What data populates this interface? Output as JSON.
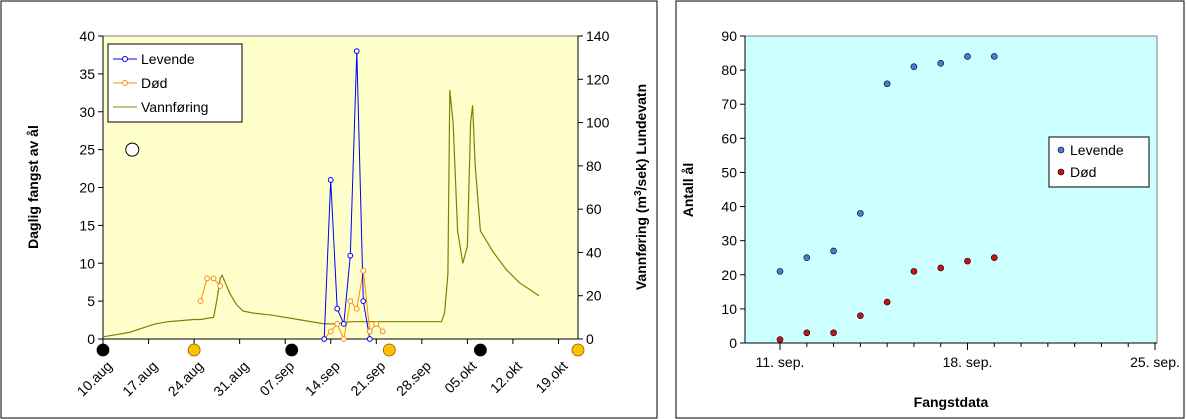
{
  "chart_data": [
    {
      "type": "line",
      "left_axis": {
        "label": "Daglig fangst av ål",
        "ylim": [
          0,
          40
        ],
        "ticks": [
          "0",
          "5",
          "10",
          "15",
          "20",
          "25",
          "30",
          "35",
          "40"
        ]
      },
      "right_axis": {
        "label_main": "Vannføring (m",
        "label_sup": "3",
        "label_rest": "/sek) Lundevatn",
        "ylim": [
          0,
          140
        ],
        "ticks": [
          "0",
          "20",
          "40",
          "60",
          "80",
          "100",
          "120",
          "140"
        ]
      },
      "x_ticks": [
        "10.aug",
        "17.aug",
        "24.aug",
        "31.aug",
        "07.sep",
        "14.sep",
        "21.sep",
        "28.sep",
        "05.okt",
        "12.okt",
        "19.okt"
      ],
      "legend": [
        "Levende",
        "Død",
        "Vannføring"
      ],
      "series": [
        {
          "name": "Levende",
          "color": "#0000ff",
          "points": [
            [
              34,
              0
            ],
            [
              35,
              21
            ],
            [
              36,
              4
            ],
            [
              37,
              2
            ],
            [
              38,
              11
            ],
            [
              39,
              38
            ],
            [
              40,
              5
            ],
            [
              41,
              0
            ]
          ]
        },
        {
          "name": "Død",
          "color": "#ff8c00",
          "points": [
            [
              15,
              5
            ],
            [
              16,
              8
            ],
            [
              17,
              8
            ],
            [
              18,
              7
            ],
            [
              34,
              0
            ],
            [
              35,
              1
            ],
            [
              36,
              2
            ],
            [
              37,
              0
            ],
            [
              38,
              5
            ],
            [
              39,
              4
            ],
            [
              40,
              9
            ],
            [
              41,
              1
            ],
            [
              42,
              2
            ],
            [
              43,
              1
            ]
          ]
        },
        {
          "name": "Vannføring",
          "color": "#808000",
          "points": [
            [
              0,
              1
            ],
            [
              2,
              2
            ],
            [
              4,
              3
            ],
            [
              6,
              5
            ],
            [
              8,
              7
            ],
            [
              10,
              8
            ],
            [
              12,
              8.5
            ],
            [
              14,
              9
            ],
            [
              15,
              9
            ],
            [
              16,
              9.5
            ],
            [
              17,
              10
            ],
            [
              17.5,
              18
            ],
            [
              18,
              28
            ],
            [
              18.3,
              29.5
            ],
            [
              18.8,
              26
            ],
            [
              19.5,
              21
            ],
            [
              20.5,
              16
            ],
            [
              21.5,
              13
            ],
            [
              23,
              12
            ],
            [
              26,
              11
            ],
            [
              30,
              9
            ],
            [
              34,
              7
            ],
            [
              36,
              7
            ],
            [
              38,
              8
            ],
            [
              40,
              8
            ],
            [
              45,
              8
            ],
            [
              50,
              8
            ],
            [
              52,
              8
            ],
            [
              52.5,
              12
            ],
            [
              53,
              30
            ],
            [
              53.3,
              115
            ],
            [
              53.8,
              100
            ],
            [
              54.5,
              50
            ],
            [
              55.3,
              35
            ],
            [
              56,
              43
            ],
            [
              56.5,
              100
            ],
            [
              56.8,
              108
            ],
            [
              57.2,
              80
            ],
            [
              58,
              50
            ],
            [
              60,
              40
            ],
            [
              62,
              32
            ],
            [
              64,
              26
            ],
            [
              66,
              22
            ],
            [
              67,
              20
            ]
          ]
        }
      ],
      "markers": [
        {
          "day": 0,
          "color": "black"
        },
        {
          "day": 14,
          "color": "gold"
        },
        {
          "day": 29,
          "color": "black"
        },
        {
          "day": 44,
          "color": "gold"
        },
        {
          "day": 58,
          "color": "black"
        },
        {
          "day": 73,
          "color": "gold"
        }
      ],
      "annotation_circle": {
        "day": 4.5,
        "value": 25
      }
    },
    {
      "type": "scatter",
      "xlabel": "Fangstdata",
      "ylabel": "Antall  ål",
      "ylim": [
        0,
        90
      ],
      "y_ticks": [
        "0",
        "10",
        "20",
        "30",
        "40",
        "50",
        "60",
        "70",
        "80",
        "90"
      ],
      "x_ticks": [
        {
          "label": "11. sep.",
          "day": 0
        },
        {
          "label": "18. sep.",
          "day": 7
        },
        {
          "label": "25. sep.",
          "day": 14
        }
      ],
      "xlim": [
        0,
        14
      ],
      "legend": [
        "Levende",
        "Død"
      ],
      "series": [
        {
          "name": "Levende",
          "color": "#4b7bd8",
          "points": [
            [
              0,
              21
            ],
            [
              1,
              25
            ],
            [
              2,
              27
            ],
            [
              3,
              38
            ],
            [
              4,
              76
            ],
            [
              5,
              81
            ],
            [
              6,
              82
            ],
            [
              7,
              84
            ],
            [
              8,
              84
            ]
          ]
        },
        {
          "name": "Død",
          "color": "#d01010",
          "points": [
            [
              0,
              1
            ],
            [
              1,
              3
            ],
            [
              2,
              3
            ],
            [
              3,
              8
            ],
            [
              4,
              12
            ],
            [
              5,
              21
            ],
            [
              6,
              22
            ],
            [
              7,
              24
            ],
            [
              8,
              25
            ]
          ]
        }
      ]
    }
  ]
}
